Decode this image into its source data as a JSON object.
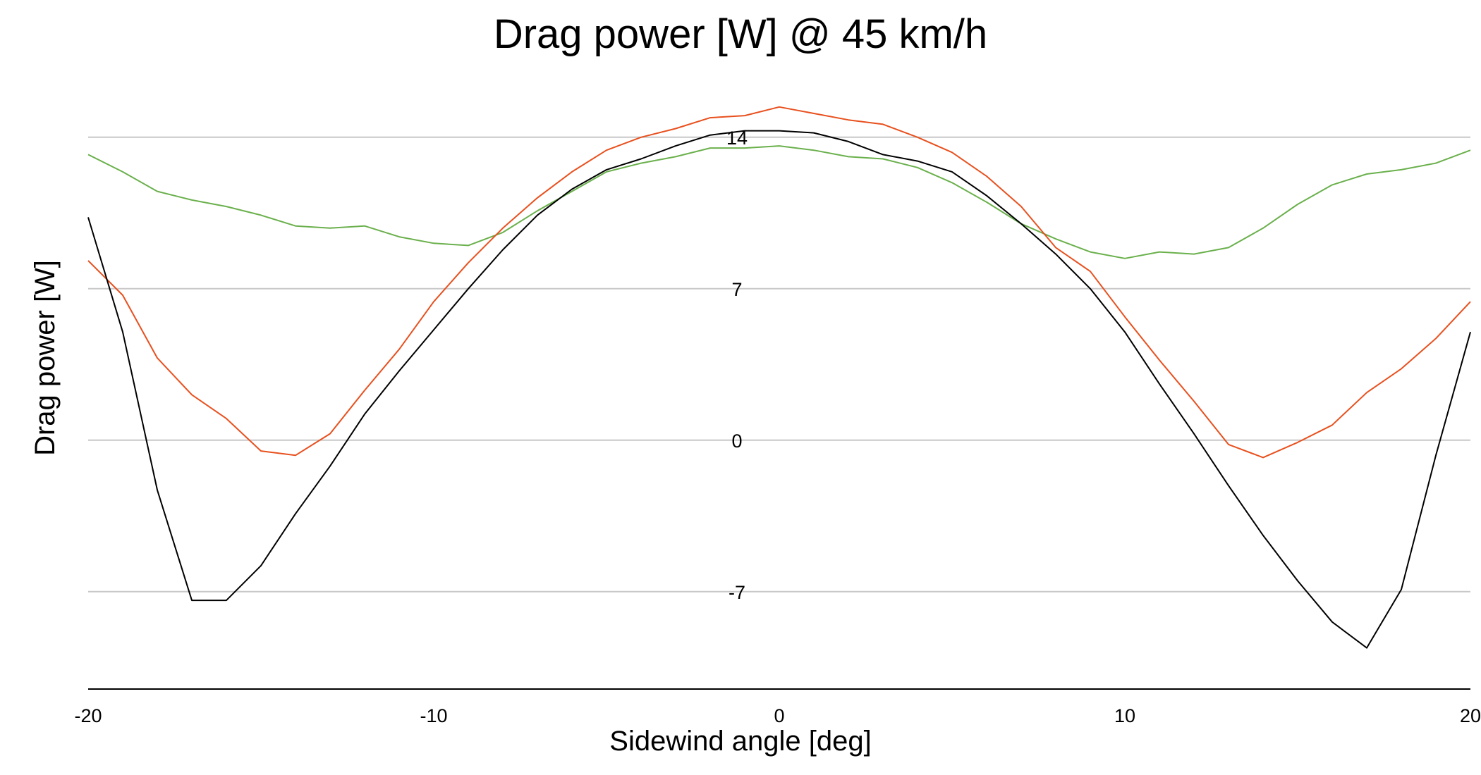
{
  "chart_data": {
    "type": "line",
    "title": "Drag power [W] @ 45 km/h",
    "xlabel": "Sidewind angle [deg]",
    "ylabel": "Drag power [W]",
    "xlim": [
      -20,
      20
    ],
    "ylim": [
      -11.5,
      16.5
    ],
    "x_ticks": [
      -20,
      -10,
      0,
      10,
      20
    ],
    "y_ticks": [
      -7,
      0,
      7,
      14
    ],
    "grid": "horizontal",
    "legend": "none",
    "x": [
      -20,
      -19,
      -18,
      -17,
      -16,
      -15,
      -14,
      -13,
      -12,
      -11,
      -10,
      -9,
      -8,
      -7,
      -6,
      -5,
      -4,
      -3,
      -2,
      -1,
      0,
      1,
      2,
      3,
      4,
      5,
      6,
      7,
      8,
      9,
      10,
      11,
      12,
      13,
      14,
      15,
      16,
      17,
      18,
      19,
      20
    ],
    "series": [
      {
        "color": "#000000",
        "values": [
          10.3,
          5.0,
          -2.3,
          -7.4,
          -7.4,
          -5.8,
          -3.4,
          -1.2,
          1.2,
          3.2,
          5.1,
          7.0,
          8.8,
          10.4,
          11.6,
          12.5,
          13.0,
          13.6,
          14.1,
          14.3,
          14.3,
          14.2,
          13.8,
          13.2,
          12.9,
          12.4,
          11.3,
          10.0,
          8.6,
          7.0,
          5.0,
          2.6,
          0.3,
          -2.1,
          -4.4,
          -6.5,
          -8.4,
          -9.6,
          -6.9,
          -0.7,
          5.0
        ]
      },
      {
        "color": "#e8501e",
        "values": [
          8.3,
          6.7,
          3.8,
          2.1,
          1.0,
          -0.5,
          -0.7,
          0.3,
          2.3,
          4.2,
          6.4,
          8.2,
          9.8,
          11.2,
          12.4,
          13.4,
          14.0,
          14.4,
          14.9,
          15.0,
          15.4,
          15.1,
          14.8,
          14.6,
          14.0,
          13.3,
          12.2,
          10.8,
          8.9,
          7.8,
          5.7,
          3.7,
          1.8,
          -0.2,
          -0.8,
          -0.1,
          0.7,
          2.2,
          3.3,
          4.7,
          6.4
        ]
      },
      {
        "color": "#6ab04c",
        "values": [
          13.2,
          12.4,
          11.5,
          11.1,
          10.8,
          10.4,
          9.9,
          9.8,
          9.9,
          9.4,
          9.1,
          9.0,
          9.6,
          10.6,
          11.5,
          12.4,
          12.8,
          13.1,
          13.5,
          13.5,
          13.6,
          13.4,
          13.1,
          13.0,
          12.6,
          11.9,
          11.0,
          10.0,
          9.3,
          8.7,
          8.4,
          8.7,
          8.6,
          8.9,
          9.8,
          10.9,
          11.8,
          12.3,
          12.5,
          12.8,
          13.4
        ]
      }
    ]
  }
}
